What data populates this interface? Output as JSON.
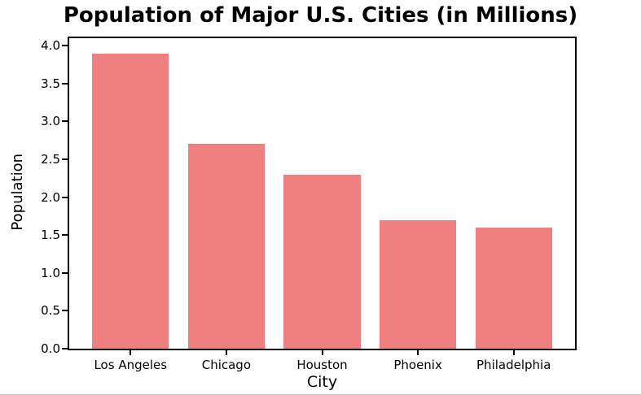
{
  "figure": {
    "background": "#ffffff",
    "spine_color": "#000000",
    "edge_line_color": "#cccccc"
  },
  "chart_data": {
    "type": "bar",
    "title": "Population of Major U.S. Cities (in Millions)",
    "xlabel": "City",
    "ylabel": "Population",
    "categories": [
      "Los Angeles",
      "Chicago",
      "Houston",
      "Phoenix",
      "Philadelphia"
    ],
    "values": [
      3.9,
      2.7,
      2.3,
      1.7,
      1.6
    ],
    "bar_color": "#f08080",
    "bar_width_units": 0.8,
    "yticks": [
      0.0,
      0.5,
      1.0,
      1.5,
      2.0,
      2.5,
      3.0,
      3.5,
      4.0
    ],
    "ytick_labels": [
      "0.0",
      "0.5",
      "1.0",
      "1.5",
      "2.0",
      "2.5",
      "3.0",
      "3.5",
      "4.0"
    ],
    "ylim": [
      0,
      4.1
    ],
    "xlim": [
      -0.64,
      4.64
    ],
    "grid": false,
    "legend": "none"
  }
}
